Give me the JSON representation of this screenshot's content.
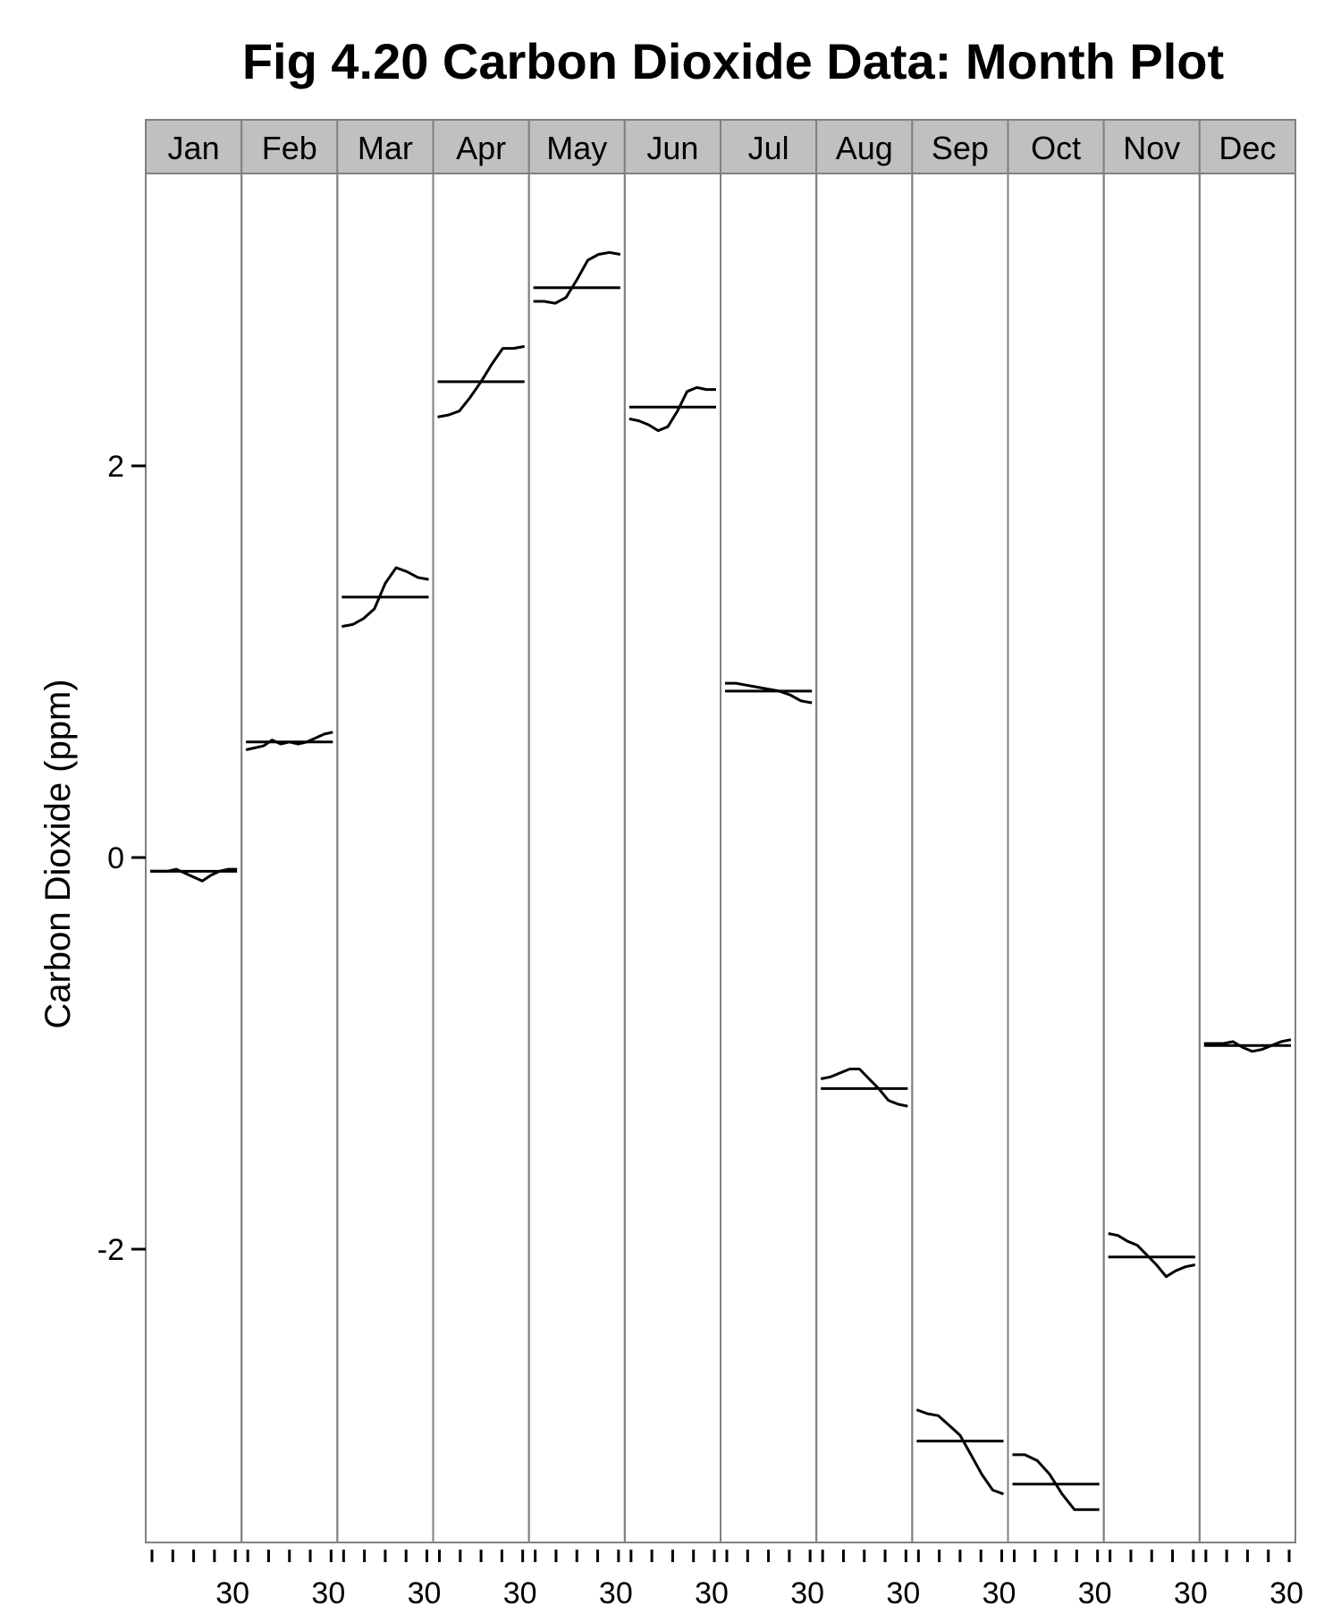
{
  "chart_data": {
    "type": "line",
    "title": "Fig 4.20 Carbon Dioxide Data: Month Plot",
    "ylabel": "Carbon Dioxide (ppm)",
    "xlabel": "",
    "ylim": [
      -3.4,
      3.5
    ],
    "yticks": [
      -2,
      0,
      2
    ],
    "ytick_labels": [
      "-2",
      "0",
      "2"
    ],
    "x_tick_label": "30",
    "grid": false,
    "legend": "none",
    "line_color": "#000000",
    "panel_border_color": "#808080",
    "strip_fill": "#c0c0c0",
    "panels": [
      {
        "month": "Jan",
        "mean": -0.07,
        "values": [
          -0.07,
          -0.07,
          -0.07,
          -0.06,
          -0.08,
          -0.1,
          -0.12,
          -0.09,
          -0.07,
          -0.06,
          -0.06
        ]
      },
      {
        "month": "Feb",
        "mean": 0.59,
        "values": [
          0.55,
          0.56,
          0.57,
          0.6,
          0.58,
          0.59,
          0.58,
          0.59,
          0.61,
          0.63,
          0.64
        ]
      },
      {
        "month": "Mar",
        "mean": 1.33,
        "values": [
          1.18,
          1.19,
          1.22,
          1.27,
          1.4,
          1.48,
          1.46,
          1.43,
          1.42
        ]
      },
      {
        "month": "Apr",
        "mean": 2.43,
        "values": [
          2.25,
          2.26,
          2.28,
          2.35,
          2.43,
          2.52,
          2.6,
          2.6,
          2.61
        ]
      },
      {
        "month": "May",
        "mean": 2.91,
        "values": [
          2.84,
          2.84,
          2.83,
          2.86,
          2.95,
          3.05,
          3.08,
          3.09,
          3.08
        ]
      },
      {
        "month": "Jun",
        "mean": 2.3,
        "values": [
          2.24,
          2.23,
          2.21,
          2.18,
          2.2,
          2.28,
          2.38,
          2.4,
          2.39,
          2.39
        ]
      },
      {
        "month": "Jul",
        "mean": 0.85,
        "values": [
          0.89,
          0.89,
          0.88,
          0.87,
          0.86,
          0.85,
          0.83,
          0.8,
          0.79
        ]
      },
      {
        "month": "Aug",
        "mean": -1.18,
        "values": [
          -1.13,
          -1.12,
          -1.1,
          -1.08,
          -1.08,
          -1.13,
          -1.18,
          -1.24,
          -1.26,
          -1.27
        ]
      },
      {
        "month": "Sep",
        "mean": -2.98,
        "values": [
          -2.82,
          -2.84,
          -2.85,
          -2.9,
          -2.95,
          -3.05,
          -3.15,
          -3.23,
          -3.25
        ]
      },
      {
        "month": "Oct",
        "mean": -3.2,
        "values": [
          -3.05,
          -3.05,
          -3.08,
          -3.15,
          -3.25,
          -3.33,
          -3.33,
          -3.33
        ]
      },
      {
        "month": "Nov",
        "mean": -2.04,
        "values": [
          -1.92,
          -1.93,
          -1.96,
          -1.98,
          -2.03,
          -2.08,
          -2.14,
          -2.11,
          -2.09,
          -2.08
        ]
      },
      {
        "month": "Dec",
        "mean": -0.96,
        "values": [
          -0.95,
          -0.95,
          -0.95,
          -0.94,
          -0.97,
          -0.99,
          -0.98,
          -0.96,
          -0.94,
          -0.93
        ]
      }
    ]
  }
}
